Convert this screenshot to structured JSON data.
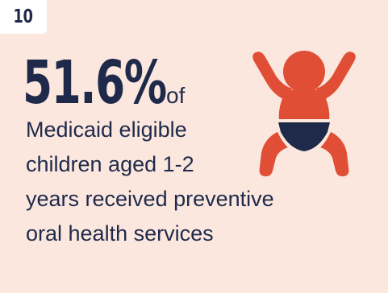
{
  "badge": {
    "number": "10"
  },
  "stat": {
    "value": "51.6%",
    "suffix": "of"
  },
  "description": {
    "lines": [
      "Medicaid eligible",
      "children aged 1-2",
      "years received preventive",
      "oral health services"
    ]
  },
  "icons": {
    "baby": "baby-in-diaper-icon"
  },
  "colors": {
    "background": "#fbe7de",
    "badge_background": "#ffffff",
    "text": "#1f2a4b",
    "baby_body": "#e04e35",
    "diaper": "#1f2a4b"
  }
}
